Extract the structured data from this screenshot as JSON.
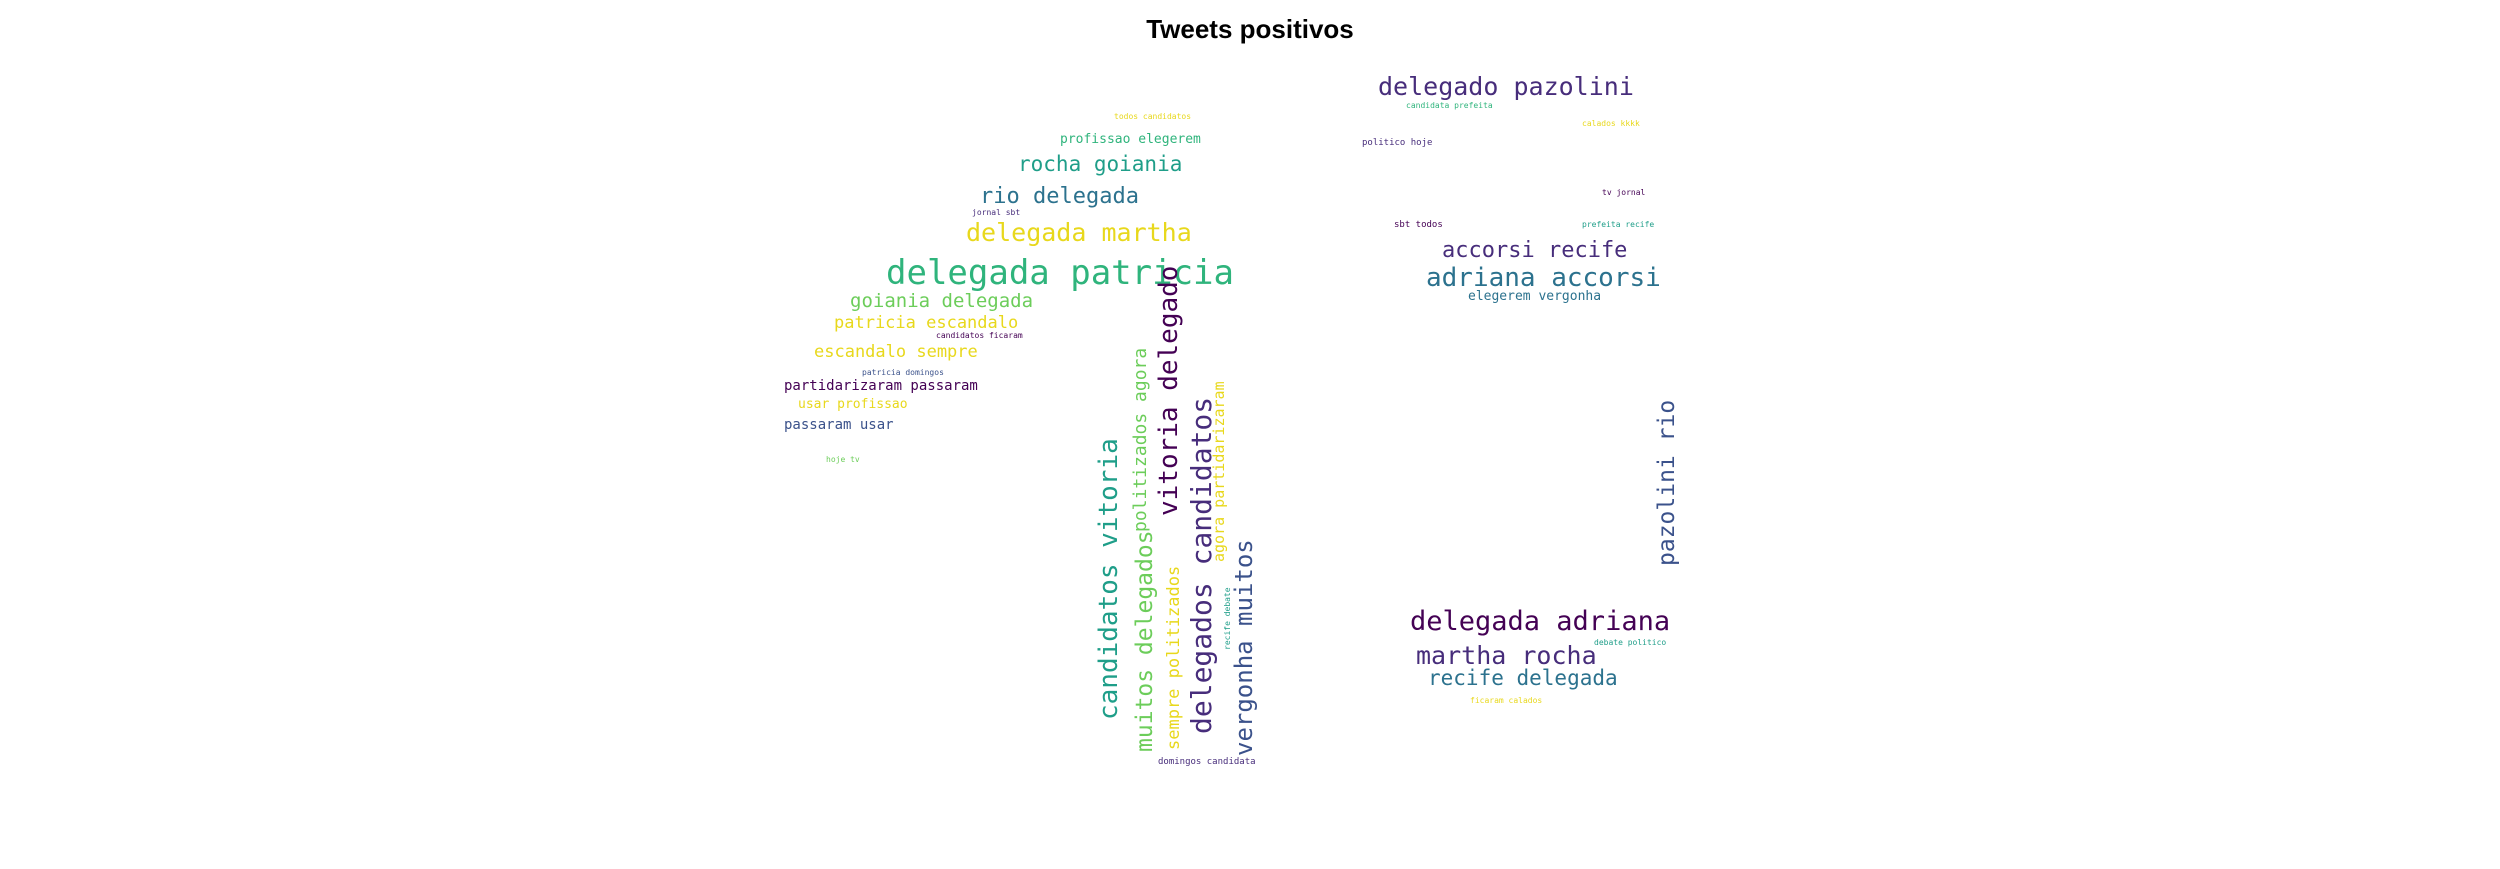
{
  "title": "Tweets positivos",
  "colors": {
    "yellow": "#e8d81c",
    "lightgreen": "#6ccd5a",
    "green": "#2fb47c",
    "teal": "#1f9e89",
    "blue": "#2c728e",
    "indigo": "#3b528b",
    "purple": "#472d7b",
    "darkpurple": "#440154"
  },
  "words": [
    {
      "text": "delegada patricia",
      "color": "green"
    },
    {
      "text": "delegada martha",
      "color": "yellow"
    },
    {
      "text": "rocha goiania",
      "color": "teal"
    },
    {
      "text": "rio delegada",
      "color": "blue"
    },
    {
      "text": "profissao elegerem",
      "color": "green"
    },
    {
      "text": "todos candidatos",
      "color": "yellow"
    },
    {
      "text": "jornal sbt",
      "color": "purple"
    },
    {
      "text": "goiania delegada",
      "color": "lightgreen"
    },
    {
      "text": "patricia escandalo",
      "color": "yellow"
    },
    {
      "text": "candidatos ficaram",
      "color": "darkpurple"
    },
    {
      "text": "escandalo sempre",
      "color": "yellow"
    },
    {
      "text": "patricia domingos",
      "color": "indigo"
    },
    {
      "text": "partidarizaram passaram",
      "color": "darkpurple"
    },
    {
      "text": "usar profissao",
      "color": "yellow"
    },
    {
      "text": "passaram usar",
      "color": "indigo"
    },
    {
      "text": "hoje tv",
      "color": "lightgreen"
    },
    {
      "text": "candidatos vitoria",
      "color": "teal"
    },
    {
      "text": "muitos delegados",
      "color": "lightgreen"
    },
    {
      "text": "politizados agora",
      "color": "lightgreen"
    },
    {
      "text": "sempre politizados",
      "color": "yellow"
    },
    {
      "text": "vitoria delegado",
      "color": "darkpurple"
    },
    {
      "text": "delegados candidatos",
      "color": "purple"
    },
    {
      "text": "agora partidarizaram",
      "color": "yellow"
    },
    {
      "text": "vergonha muitos",
      "color": "indigo"
    },
    {
      "text": "recife debate",
      "color": "teal"
    },
    {
      "text": "domingos candidata",
      "color": "purple"
    },
    {
      "text": "delegado pazolini",
      "color": "purple"
    },
    {
      "text": "candidata prefeita",
      "color": "green"
    },
    {
      "text": "calados kkkk",
      "color": "yellow"
    },
    {
      "text": "politico hoje",
      "color": "purple"
    },
    {
      "text": "tv jornal",
      "color": "darkpurple"
    },
    {
      "text": "sbt todos",
      "color": "darkpurple"
    },
    {
      "text": "prefeita recife",
      "color": "teal"
    },
    {
      "text": "accorsi recife",
      "color": "purple"
    },
    {
      "text": "adriana accorsi",
      "color": "blue"
    },
    {
      "text": "elegerem vergonha",
      "color": "blue"
    },
    {
      "text": "pazolini rio",
      "color": "indigo"
    },
    {
      "text": "delegada adriana",
      "color": "darkpurple"
    },
    {
      "text": "martha rocha",
      "color": "purple"
    },
    {
      "text": "recife delegada",
      "color": "blue"
    },
    {
      "text": "debate politico",
      "color": "teal"
    },
    {
      "text": "ficaram calados",
      "color": "yellow"
    }
  ]
}
